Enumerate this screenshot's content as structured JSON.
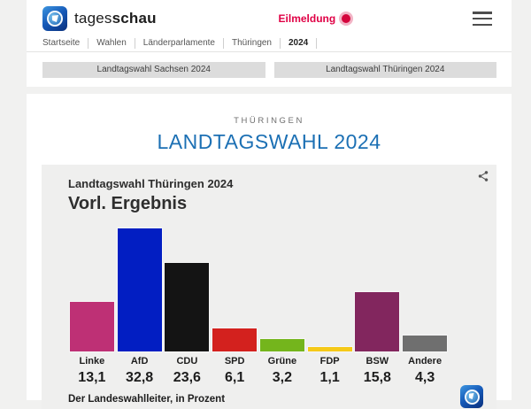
{
  "header": {
    "brand_regular": "tages",
    "brand_bold": "schau",
    "breaking_label": "Eilmeldung",
    "breadcrumb": [
      "Startseite",
      "Wahlen",
      "Länderparlamente",
      "Thüringen",
      "2024"
    ]
  },
  "tabs": [
    {
      "label": "Landtagswahl Sachsen 2024"
    },
    {
      "label": "Landtagswahl Thüringen 2024"
    }
  ],
  "main": {
    "kicker": "THÜRINGEN",
    "title": "LANDTAGSWAHL 2024"
  },
  "chart": {
    "subtitle": "Landtagswahl Thüringen 2024",
    "title": "Vorl. Ergebnis",
    "source": "Der Landeswahlleiter, in Prozent"
  },
  "chart_data": {
    "type": "bar",
    "title": "Landtagswahl Thüringen 2024 – Vorl. Ergebnis",
    "categories": [
      "Linke",
      "AfD",
      "CDU",
      "SPD",
      "Grüne",
      "FDP",
      "BSW",
      "Andere"
    ],
    "values": [
      13.1,
      32.8,
      23.6,
      6.1,
      3.2,
      1.1,
      15.8,
      4.3
    ],
    "value_labels": [
      "13,1",
      "32,8",
      "23,6",
      "6,1",
      "3,2",
      "1,1",
      "15,8",
      "4,3"
    ],
    "bar_colors": [
      "#be3075",
      "#021ec2",
      "#141414",
      "#d3211e",
      "#74b51c",
      "#f5c919",
      "#82265e",
      "#6f6f6f"
    ],
    "ylabel": "Prozent",
    "ylim": [
      0,
      35
    ],
    "grid": false,
    "legend": "none",
    "source": "Der Landeswahlleiter, in Prozent"
  },
  "colors": {
    "accent_blue": "#1c70b4",
    "breaking_red": "#e00045",
    "panel_bg": "#efefee",
    "page_bg": "#f1f1f0"
  }
}
